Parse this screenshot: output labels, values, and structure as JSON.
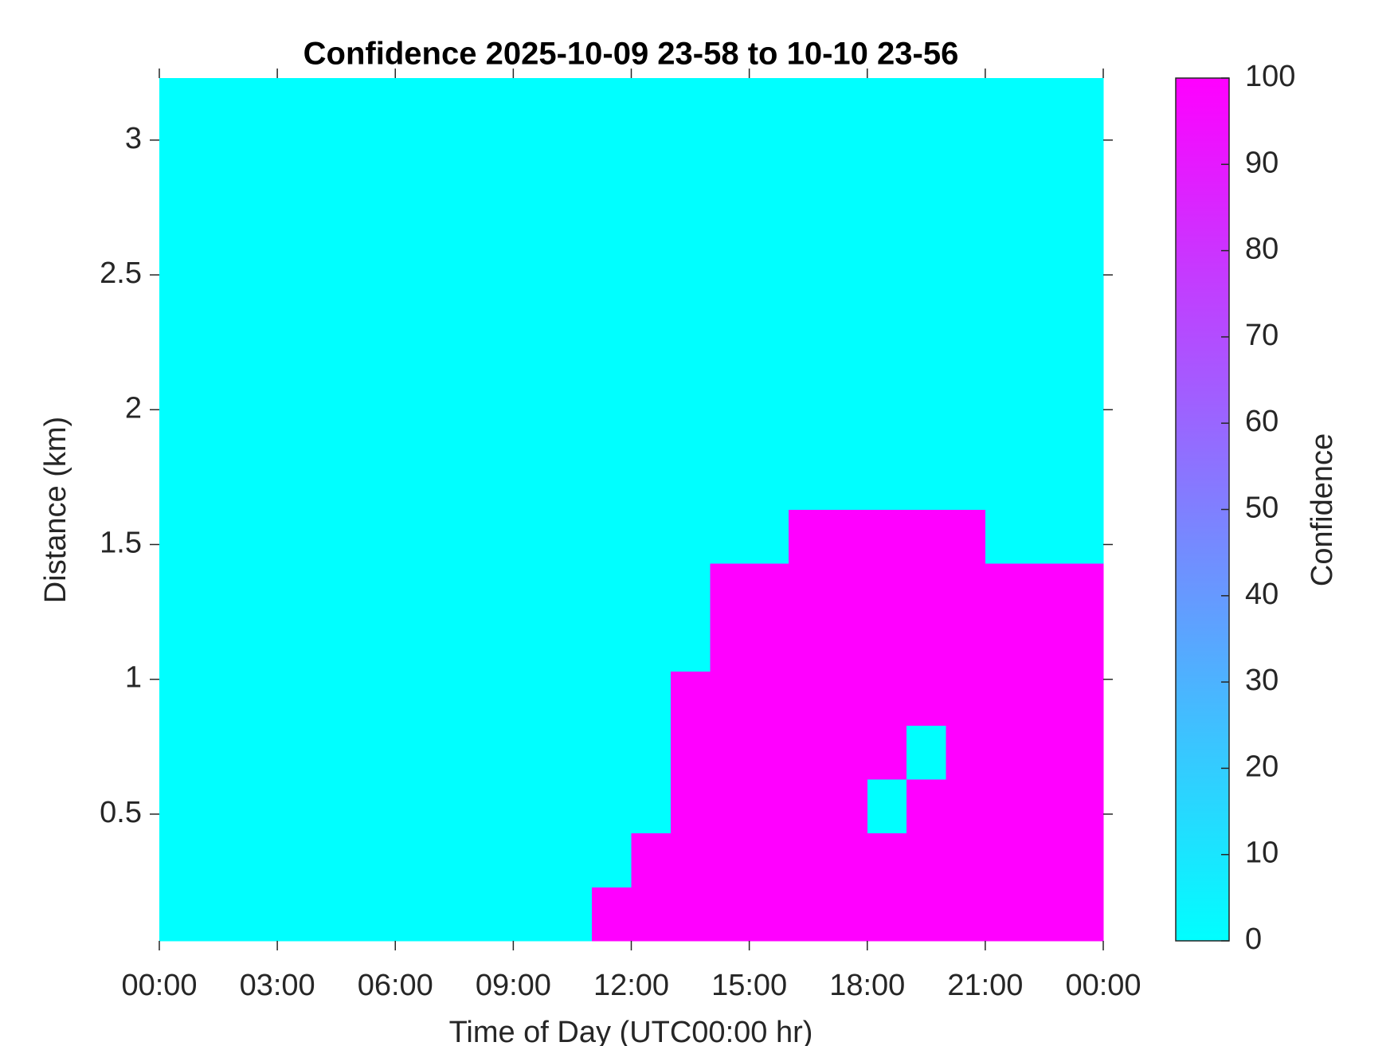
{
  "chart_data": {
    "type": "heatmap",
    "title": "Confidence 2025-10-09 23-58 to 10-10 23-56",
    "x_label": "Time of Day (UTC00:00 hr)",
    "y_label": "Distance (km)",
    "colorbar_label": "Confidence",
    "xlim": [
      0,
      24
    ],
    "xticks": [
      {
        "value": 0,
        "label": "00:00"
      },
      {
        "value": 3,
        "label": "03:00"
      },
      {
        "value": 6,
        "label": "06:00"
      },
      {
        "value": 9,
        "label": "09:00"
      },
      {
        "value": 12,
        "label": "12:00"
      },
      {
        "value": 15,
        "label": "15:00"
      },
      {
        "value": 18,
        "label": "18:00"
      },
      {
        "value": 21,
        "label": "21:00"
      },
      {
        "value": 24,
        "label": "00:00"
      }
    ],
    "ylim": [
      0.03,
      3.23
    ],
    "yticks": [
      0.5,
      1,
      1.5,
      2,
      2.5,
      3
    ],
    "clim": [
      0,
      100
    ],
    "cticks": [
      0,
      10,
      20,
      30,
      40,
      50,
      60,
      70,
      80,
      90,
      100
    ],
    "colormap": [
      "#00ffff",
      "#ff00ff"
    ],
    "z": [
      [
        0,
        0,
        0,
        0,
        0,
        0,
        0,
        0,
        0,
        0,
        0,
        100,
        100,
        100,
        100,
        100,
        100,
        100,
        100,
        100,
        100,
        100,
        100,
        100
      ],
      [
        0,
        0,
        0,
        0,
        0,
        0,
        0,
        0,
        0,
        0,
        0,
        0,
        100,
        100,
        100,
        100,
        100,
        100,
        100,
        100,
        100,
        100,
        100,
        100
      ],
      [
        0,
        0,
        0,
        0,
        0,
        0,
        0,
        0,
        0,
        0,
        0,
        0,
        0,
        100,
        100,
        100,
        100,
        100,
        0,
        100,
        100,
        100,
        100,
        100
      ],
      [
        0,
        0,
        0,
        0,
        0,
        0,
        0,
        0,
        0,
        0,
        0,
        0,
        0,
        100,
        100,
        100,
        100,
        100,
        100,
        0,
        100,
        100,
        100,
        100
      ],
      [
        0,
        0,
        0,
        0,
        0,
        0,
        0,
        0,
        0,
        0,
        0,
        0,
        0,
        100,
        100,
        100,
        100,
        100,
        100,
        100,
        100,
        100,
        100,
        100
      ],
      [
        0,
        0,
        0,
        0,
        0,
        0,
        0,
        0,
        0,
        0,
        0,
        0,
        0,
        0,
        100,
        100,
        100,
        100,
        100,
        100,
        100,
        100,
        100,
        100
      ],
      [
        0,
        0,
        0,
        0,
        0,
        0,
        0,
        0,
        0,
        0,
        0,
        0,
        0,
        0,
        100,
        100,
        100,
        100,
        100,
        100,
        100,
        100,
        100,
        100
      ],
      [
        0,
        0,
        0,
        0,
        0,
        0,
        0,
        0,
        0,
        0,
        0,
        0,
        0,
        0,
        0,
        0,
        100,
        100,
        100,
        100,
        100,
        0,
        0,
        0
      ],
      [
        0,
        0,
        0,
        0,
        0,
        0,
        0,
        0,
        0,
        0,
        0,
        0,
        0,
        0,
        0,
        0,
        0,
        0,
        0,
        0,
        0,
        0,
        0,
        0
      ],
      [
        0,
        0,
        0,
        0,
        0,
        0,
        0,
        0,
        0,
        0,
        0,
        0,
        0,
        0,
        0,
        0,
        0,
        0,
        0,
        0,
        0,
        0,
        0,
        0
      ],
      [
        0,
        0,
        0,
        0,
        0,
        0,
        0,
        0,
        0,
        0,
        0,
        0,
        0,
        0,
        0,
        0,
        0,
        0,
        0,
        0,
        0,
        0,
        0,
        0
      ],
      [
        0,
        0,
        0,
        0,
        0,
        0,
        0,
        0,
        0,
        0,
        0,
        0,
        0,
        0,
        0,
        0,
        0,
        0,
        0,
        0,
        0,
        0,
        0,
        0
      ],
      [
        0,
        0,
        0,
        0,
        0,
        0,
        0,
        0,
        0,
        0,
        0,
        0,
        0,
        0,
        0,
        0,
        0,
        0,
        0,
        0,
        0,
        0,
        0,
        0
      ],
      [
        0,
        0,
        0,
        0,
        0,
        0,
        0,
        0,
        0,
        0,
        0,
        0,
        0,
        0,
        0,
        0,
        0,
        0,
        0,
        0,
        0,
        0,
        0,
        0
      ],
      [
        0,
        0,
        0,
        0,
        0,
        0,
        0,
        0,
        0,
        0,
        0,
        0,
        0,
        0,
        0,
        0,
        0,
        0,
        0,
        0,
        0,
        0,
        0,
        0
      ],
      [
        0,
        0,
        0,
        0,
        0,
        0,
        0,
        0,
        0,
        0,
        0,
        0,
        0,
        0,
        0,
        0,
        0,
        0,
        0,
        0,
        0,
        0,
        0,
        0
      ]
    ]
  }
}
